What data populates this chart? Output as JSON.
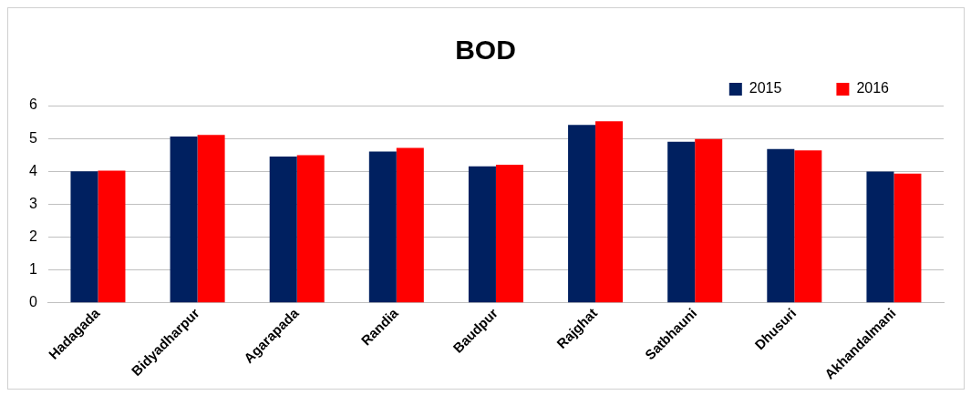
{
  "chart_data": {
    "type": "bar",
    "title": "BOD",
    "categories": [
      "Hadagada",
      "Bidyadharpur",
      "Agarapada",
      "Randia",
      "Baudpur",
      "Rajghat",
      "Satbhauni",
      "Dhusuri",
      "Akhandalmani"
    ],
    "series": [
      {
        "name": "2015",
        "color": "#002060",
        "values": [
          4.0,
          5.06,
          4.45,
          4.6,
          4.15,
          5.41,
          4.9,
          4.68,
          3.99
        ]
      },
      {
        "name": "2016",
        "color": "#ff0000",
        "values": [
          4.02,
          5.11,
          4.49,
          4.71,
          4.2,
          5.52,
          4.98,
          4.64,
          3.93
        ]
      }
    ],
    "ylim": [
      0,
      6
    ],
    "yticks": [
      0,
      1,
      2,
      3,
      4,
      5,
      6
    ],
    "grid": "y",
    "legend": "top"
  }
}
